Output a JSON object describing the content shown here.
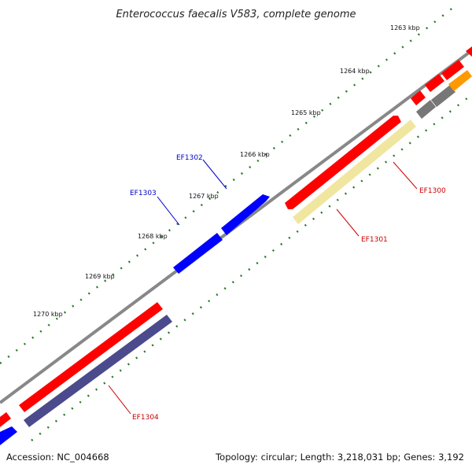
{
  "map": {
    "title": "Enterococcus faecalis V583, complete genome",
    "accession": "Accession: NC_004668",
    "summary": "Topology: circular; Length: 3,218,031 bp; Genes: 3,192",
    "ticks": [
      "1263 kbp",
      "1264 kbp",
      "1265 kbp",
      "1266 kbp",
      "1267 kbp",
      "1268 kbp",
      "1269 kbp",
      "1270 kbp"
    ],
    "gene_labels": {
      "ef1300": "EF1300",
      "ef1301": "EF1301",
      "ef1302": "EF1302",
      "ef1303": "EF1303",
      "ef1304": "EF1304"
    },
    "colors": {
      "cds": "#ff0000",
      "cds_reverse": "#0000ff",
      "gene_yellow": "#f0e6a0",
      "gene_purple": "#4a4a8c",
      "other_gray": "#777777",
      "orange": "#ff9900",
      "backbone": "#888888",
      "tick_green": "#2a7a2a",
      "label_red": "#cc0000",
      "label_blue": "#0000cc"
    }
  }
}
